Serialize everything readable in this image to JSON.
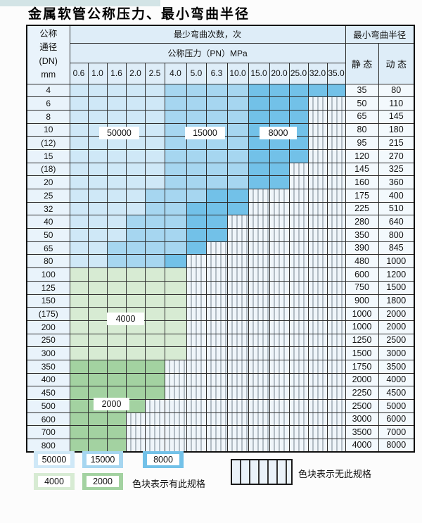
{
  "page": {
    "title": "金属软管公称压力、最小弯曲半径"
  },
  "colors": {
    "b1": "#cfe8f7",
    "b2": "#a6d6f0",
    "b3": "#72c1e8",
    "g1": "#d7ebd3",
    "g2": "#a3d2a1",
    "hatchbg": "#eff5fa",
    "hatchline": "#76838f",
    "header": "#deedf8",
    "labelbg": "#e9f3fb",
    "valbg": "#f3f9fd"
  },
  "table": {
    "corner_header": [
      "公称",
      "通径",
      "(DN)",
      "mm"
    ],
    "cycles_header": "最少弯曲次数，次",
    "pressure_header": "公称压力（PN）MPa",
    "pressure_columns": [
      "0.6",
      "1.0",
      "1.6",
      "2.0",
      "2.5",
      "4.0",
      "5.0",
      "6.3",
      "10.0",
      "15.0",
      "20.0",
      "25.0",
      "32.0",
      "35.0"
    ],
    "radius_header": "最小弯曲半径",
    "static_header": "静 态",
    "dynamic_header": "动 态",
    "rows": [
      {
        "dn": "4",
        "static": "35",
        "dynamic": "80"
      },
      {
        "dn": "6",
        "static": "50",
        "dynamic": "110"
      },
      {
        "dn": "8",
        "static": "65",
        "dynamic": "145"
      },
      {
        "dn": "10",
        "static": "80",
        "dynamic": "180"
      },
      {
        "dn": "(12)",
        "static": "95",
        "dynamic": "215"
      },
      {
        "dn": "15",
        "static": "120",
        "dynamic": "270"
      },
      {
        "dn": "(18)",
        "static": "145",
        "dynamic": "325"
      },
      {
        "dn": "20",
        "static": "160",
        "dynamic": "360"
      },
      {
        "dn": "25",
        "static": "175",
        "dynamic": "400"
      },
      {
        "dn": "32",
        "static": "225",
        "dynamic": "510"
      },
      {
        "dn": "40",
        "static": "280",
        "dynamic": "640"
      },
      {
        "dn": "50",
        "static": "350",
        "dynamic": "800"
      },
      {
        "dn": "65",
        "static": "390",
        "dynamic": "845"
      },
      {
        "dn": "80",
        "static": "480",
        "dynamic": "1000"
      },
      {
        "dn": "100",
        "static": "600",
        "dynamic": "1200"
      },
      {
        "dn": "125",
        "static": "750",
        "dynamic": "1500"
      },
      {
        "dn": "150",
        "static": "900",
        "dynamic": "1800"
      },
      {
        "dn": "(175)",
        "static": "1000",
        "dynamic": "2000"
      },
      {
        "dn": "200",
        "static": "1000",
        "dynamic": "2000"
      },
      {
        "dn": "250",
        "static": "1250",
        "dynamic": "2500"
      },
      {
        "dn": "300",
        "static": "1500",
        "dynamic": "3000"
      },
      {
        "dn": "350",
        "static": "1750",
        "dynamic": "3500"
      },
      {
        "dn": "400",
        "static": "2000",
        "dynamic": "4000"
      },
      {
        "dn": "450",
        "static": "2250",
        "dynamic": "4500"
      },
      {
        "dn": "500",
        "static": "2500",
        "dynamic": "5000"
      },
      {
        "dn": "600",
        "static": "3000",
        "dynamic": "6000"
      },
      {
        "dn": "700",
        "static": "3500",
        "dynamic": "7000"
      },
      {
        "dn": "800",
        "static": "4000",
        "dynamic": "8000"
      }
    ]
  },
  "overlays": [
    {
      "id": "50000",
      "text": "50000"
    },
    {
      "id": "15000",
      "text": "15000"
    },
    {
      "id": "8000",
      "text": "8000"
    },
    {
      "id": "4000",
      "text": "4000"
    },
    {
      "id": "2000",
      "text": "2000"
    }
  ],
  "legend": {
    "cycle_swatches": [
      {
        "label": "50000",
        "color_key": "b1"
      },
      {
        "label": "15000",
        "color_key": "b2"
      },
      {
        "label": "8000",
        "color_key": "b3"
      },
      {
        "label": "4000",
        "color_key": "g1"
      },
      {
        "label": "2000",
        "color_key": "g2"
      }
    ],
    "has_text": "色块表示有此规格",
    "none_text": "色块表示无此规格"
  },
  "chart_data": {
    "type": "heatmap",
    "title": "金属软管公称压力、最小弯曲半径",
    "x_label": "公称压力（PN）MPa",
    "y_label": "公称通径(DN) mm",
    "columns": [
      0.6,
      1.0,
      1.6,
      2.0,
      2.5,
      4.0,
      5.0,
      6.3,
      10.0,
      15.0,
      20.0,
      25.0,
      32.0,
      35.0
    ],
    "rows": [
      "4",
      "6",
      "8",
      "10",
      "(12)",
      "15",
      "(18)",
      "20",
      "25",
      "32",
      "40",
      "50",
      "65",
      "80",
      "100",
      "125",
      "150",
      "(175)",
      "200",
      "250",
      "300",
      "350",
      "400",
      "450",
      "500",
      "600",
      "700",
      "800"
    ],
    "cell_meaning": "最少弯曲次数，次（null = 无此规格）",
    "bend_cycles": [
      [
        50000,
        50000,
        50000,
        50000,
        50000,
        15000,
        15000,
        15000,
        15000,
        8000,
        8000,
        8000,
        8000,
        8000
      ],
      [
        50000,
        50000,
        50000,
        50000,
        50000,
        15000,
        15000,
        15000,
        15000,
        8000,
        8000,
        8000,
        null,
        null
      ],
      [
        50000,
        50000,
        50000,
        50000,
        50000,
        15000,
        15000,
        15000,
        15000,
        8000,
        8000,
        8000,
        null,
        null
      ],
      [
        50000,
        50000,
        50000,
        50000,
        50000,
        15000,
        15000,
        15000,
        15000,
        8000,
        8000,
        8000,
        null,
        null
      ],
      [
        50000,
        50000,
        50000,
        50000,
        50000,
        15000,
        15000,
        15000,
        15000,
        8000,
        8000,
        8000,
        null,
        null
      ],
      [
        50000,
        50000,
        50000,
        50000,
        50000,
        15000,
        15000,
        15000,
        15000,
        8000,
        8000,
        8000,
        null,
        null
      ],
      [
        50000,
        50000,
        50000,
        50000,
        50000,
        15000,
        15000,
        15000,
        15000,
        8000,
        8000,
        null,
        null,
        null
      ],
      [
        50000,
        50000,
        50000,
        50000,
        50000,
        15000,
        15000,
        15000,
        15000,
        8000,
        8000,
        null,
        null,
        null
      ],
      [
        50000,
        50000,
        50000,
        50000,
        15000,
        15000,
        15000,
        8000,
        8000,
        null,
        null,
        null,
        null,
        null
      ],
      [
        50000,
        50000,
        50000,
        50000,
        15000,
        15000,
        8000,
        8000,
        8000,
        null,
        null,
        null,
        null,
        null
      ],
      [
        50000,
        50000,
        50000,
        15000,
        15000,
        15000,
        8000,
        8000,
        null,
        null,
        null,
        null,
        null,
        null
      ],
      [
        50000,
        50000,
        50000,
        15000,
        15000,
        15000,
        8000,
        8000,
        null,
        null,
        null,
        null,
        null,
        null
      ],
      [
        50000,
        50000,
        15000,
        15000,
        15000,
        15000,
        8000,
        null,
        null,
        null,
        null,
        null,
        null,
        null
      ],
      [
        50000,
        50000,
        15000,
        15000,
        15000,
        8000,
        null,
        null,
        null,
        null,
        null,
        null,
        null,
        null
      ],
      [
        4000,
        4000,
        4000,
        4000,
        4000,
        4000,
        null,
        null,
        null,
        null,
        null,
        null,
        null,
        null
      ],
      [
        4000,
        4000,
        4000,
        4000,
        4000,
        4000,
        null,
        null,
        null,
        null,
        null,
        null,
        null,
        null
      ],
      [
        4000,
        4000,
        4000,
        4000,
        4000,
        4000,
        null,
        null,
        null,
        null,
        null,
        null,
        null,
        null
      ],
      [
        4000,
        4000,
        4000,
        4000,
        4000,
        4000,
        null,
        null,
        null,
        null,
        null,
        null,
        null,
        null
      ],
      [
        4000,
        4000,
        4000,
        4000,
        4000,
        4000,
        null,
        null,
        null,
        null,
        null,
        null,
        null,
        null
      ],
      [
        4000,
        4000,
        4000,
        4000,
        4000,
        4000,
        null,
        null,
        null,
        null,
        null,
        null,
        null,
        null
      ],
      [
        4000,
        4000,
        4000,
        4000,
        4000,
        4000,
        null,
        null,
        null,
        null,
        null,
        null,
        null,
        null
      ],
      [
        2000,
        2000,
        2000,
        2000,
        2000,
        null,
        null,
        null,
        null,
        null,
        null,
        null,
        null,
        null
      ],
      [
        2000,
        2000,
        2000,
        2000,
        2000,
        null,
        null,
        null,
        null,
        null,
        null,
        null,
        null,
        null
      ],
      [
        2000,
        2000,
        2000,
        2000,
        2000,
        null,
        null,
        null,
        null,
        null,
        null,
        null,
        null,
        null
      ],
      [
        2000,
        2000,
        2000,
        2000,
        null,
        null,
        null,
        null,
        null,
        null,
        null,
        null,
        null,
        null
      ],
      [
        2000,
        2000,
        2000,
        null,
        null,
        null,
        null,
        null,
        null,
        null,
        null,
        null,
        null,
        null
      ],
      [
        2000,
        2000,
        2000,
        null,
        null,
        null,
        null,
        null,
        null,
        null,
        null,
        null,
        null,
        null
      ],
      [
        2000,
        2000,
        2000,
        null,
        null,
        null,
        null,
        null,
        null,
        null,
        null,
        null,
        null,
        null
      ]
    ],
    "min_bend_radius": {
      "static": [
        35,
        50,
        65,
        80,
        95,
        120,
        145,
        160,
        175,
        225,
        280,
        350,
        390,
        480,
        600,
        750,
        900,
        1000,
        1000,
        1250,
        1500,
        1750,
        2000,
        2250,
        2500,
        3000,
        3500,
        4000
      ],
      "dynamic": [
        80,
        110,
        145,
        180,
        215,
        270,
        325,
        360,
        400,
        510,
        640,
        800,
        845,
        1000,
        1200,
        1500,
        1800,
        2000,
        2000,
        2500,
        3000,
        3500,
        4000,
        4500,
        5000,
        6000,
        7000,
        8000
      ]
    },
    "legend_position": "bottom",
    "grid": true
  }
}
